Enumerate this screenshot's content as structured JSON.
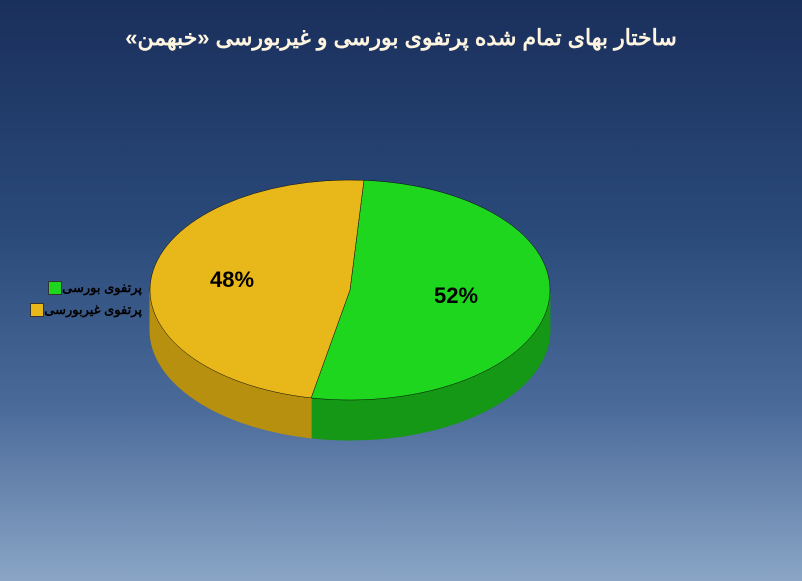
{
  "chart": {
    "type": "pie",
    "title": "ساختار بهای تمام شده پرتفوی بورسی و غیربورسی «خبهمن»",
    "title_fontsize": 22,
    "title_color": "#fdf5e0",
    "background_gradient": [
      "#1a2f5c",
      "#2a4a7a",
      "#4a6a9a",
      "#8aa5c5"
    ],
    "slices": [
      {
        "label": "پرتفوی بورسی",
        "value": 52,
        "pct_text": "52%",
        "color": "#1ed61e",
        "side_color": "#159815"
      },
      {
        "label": "پرتفوی غیربورسی",
        "value": 48,
        "pct_text": "48%",
        "color": "#e8b81a",
        "side_color": "#b8900f"
      }
    ],
    "label_fontsize": 22,
    "label_color": "#000000",
    "legend_fontsize": 13,
    "legend_color": "#000000",
    "pie_tilt": 0.55,
    "pie_depth": 40,
    "pie_radius": 200,
    "start_angle_deg": -86
  }
}
